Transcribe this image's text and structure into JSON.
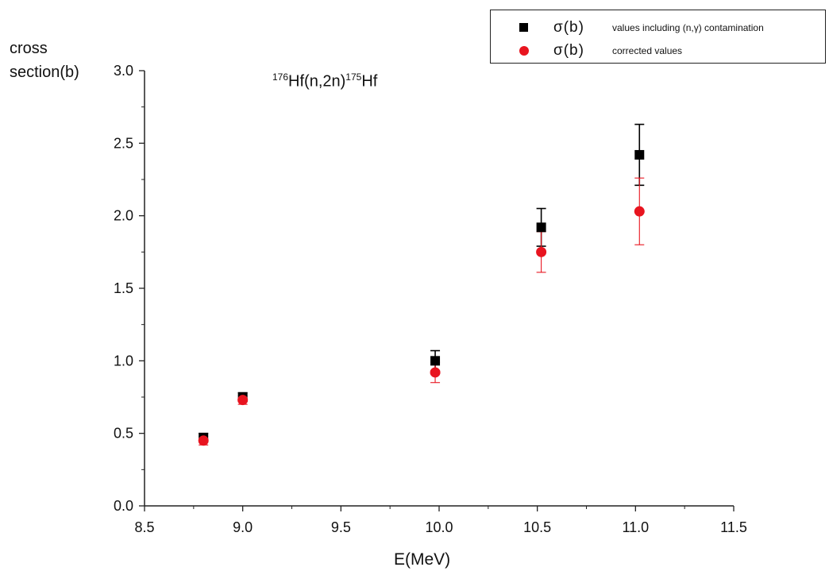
{
  "chart_data": {
    "type": "scatter",
    "title": {
      "sup1": "176",
      "main1": "Hf(n,2n)",
      "sup2": "175",
      "main2": "Hf"
    },
    "xlabel": "E(MeV)",
    "ylabel": [
      "cross",
      "section(b)"
    ],
    "xlim": [
      8.5,
      11.5
    ],
    "ylim": [
      0.0,
      3.0
    ],
    "xticks": [
      "8.5",
      "9.0",
      "9.5",
      "10.0",
      "10.5",
      "11.0",
      "11.5"
    ],
    "yticks": [
      "0.0",
      "0.5",
      "1.0",
      "1.5",
      "2.0",
      "2.5",
      "3.0"
    ],
    "grid": false,
    "legend_position": "top-right",
    "series": [
      {
        "name": "σ(b)",
        "description": "values including (n,γ) contamination",
        "marker": "square",
        "color": "#000000",
        "x": [
          8.8,
          9.0,
          9.98,
          10.52,
          11.02
        ],
        "y": [
          0.47,
          0.75,
          1.0,
          1.92,
          2.42
        ],
        "err": [
          0.03,
          0.03,
          0.07,
          0.13,
          0.21
        ]
      },
      {
        "name": "σ(b)",
        "description": "corrected values",
        "marker": "circle",
        "color": "#e8141f",
        "x": [
          8.8,
          9.0,
          9.98,
          10.52,
          11.02
        ],
        "y": [
          0.45,
          0.73,
          0.92,
          1.75,
          2.03
        ],
        "err": [
          0.03,
          0.03,
          0.07,
          0.14,
          0.23
        ]
      }
    ]
  }
}
